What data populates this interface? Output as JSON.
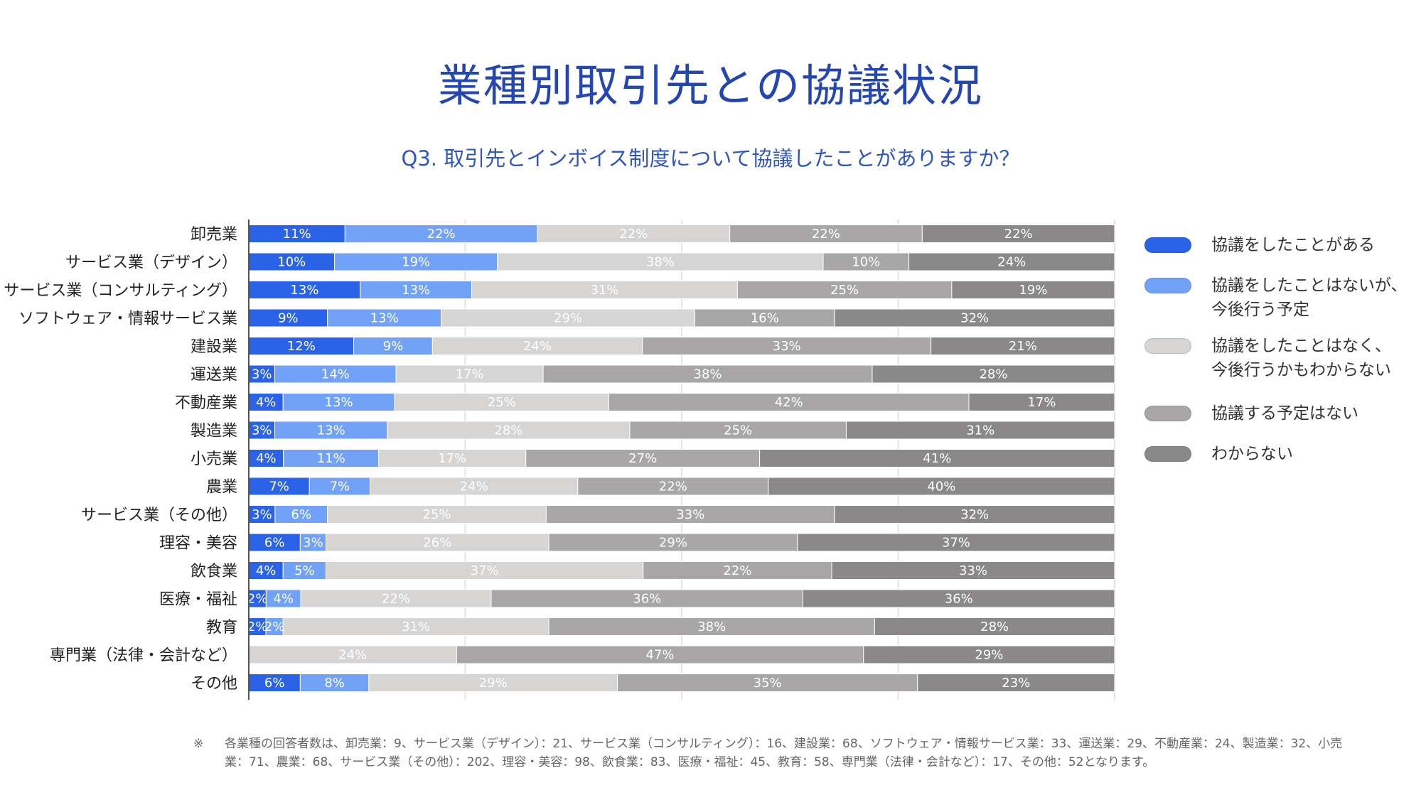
{
  "title": "業種別取引先との協議状況",
  "subtitle": "Q3. 取引先とインボイス制度について協議したことがありますか？",
  "chart_data": {
    "type": "bar",
    "orientation": "horizontal",
    "stacked": "100%",
    "title": "業種別取引先との協議状況",
    "subtitle": "Q3. 取引先とインボイス制度について協議したことがありますか？",
    "xlim": [
      0,
      100
    ],
    "grid": true,
    "legend_position": "right",
    "categories": [
      "卸売業",
      "サービス業（デザイン）",
      "サービス業（コンサルティング）",
      "ソフトウェア・情報サービス業",
      "建設業",
      "運送業",
      "不動産業",
      "製造業",
      "小売業",
      "農業",
      "サービス業（その他）",
      "理容・美容",
      "飲食業",
      "医療・福祉",
      "教育",
      "専門業（法律・会計など）",
      "その他"
    ],
    "series": [
      {
        "name": "協議をしたことがある",
        "color": "#2a62e8",
        "values": [
          11,
          10,
          13,
          9,
          12,
          3,
          4,
          3,
          4,
          7,
          3,
          6,
          4,
          2,
          2,
          0,
          6
        ]
      },
      {
        "name": "協議をしたことはないが、\n今後行う予定",
        "color": "#72a2f8",
        "values": [
          22,
          19,
          13,
          13,
          9,
          14,
          13,
          13,
          11,
          7,
          6,
          3,
          5,
          4,
          2,
          0,
          8
        ]
      },
      {
        "name": "協議をしたことはなく、\n今後行うかもわからない",
        "color": "#d7d4d4",
        "values": [
          22,
          38,
          31,
          29,
          24,
          17,
          25,
          28,
          17,
          24,
          25,
          26,
          37,
          22,
          31,
          24,
          29
        ]
      },
      {
        "name": "協議する予定はない",
        "color": "#a8a6a7",
        "values": [
          22,
          10,
          25,
          16,
          33,
          38,
          42,
          25,
          27,
          22,
          33,
          29,
          22,
          36,
          38,
          47,
          35
        ]
      },
      {
        "name": "わからない",
        "color": "#8a8889",
        "values": [
          22,
          24,
          19,
          32,
          21,
          28,
          17,
          31,
          41,
          40,
          32,
          37,
          33,
          36,
          28,
          29,
          23
        ]
      }
    ]
  },
  "footnote": {
    "mark": "※",
    "text": "各業種の回答者数は、卸売業：9、サービス業（デザイン）：21、サービス業（コンサルティング）：16、建設業：68、ソフトウェア・情報サービス業：33、運送業：29、不動産業：24、製造業：32、小売業：71、農業：68、サービス業（その他）：202、理容・美容：98、飲食業：83、医療・福祉：45、教育：58、専門業（法律・会計など）：17、その他：52となります。"
  }
}
